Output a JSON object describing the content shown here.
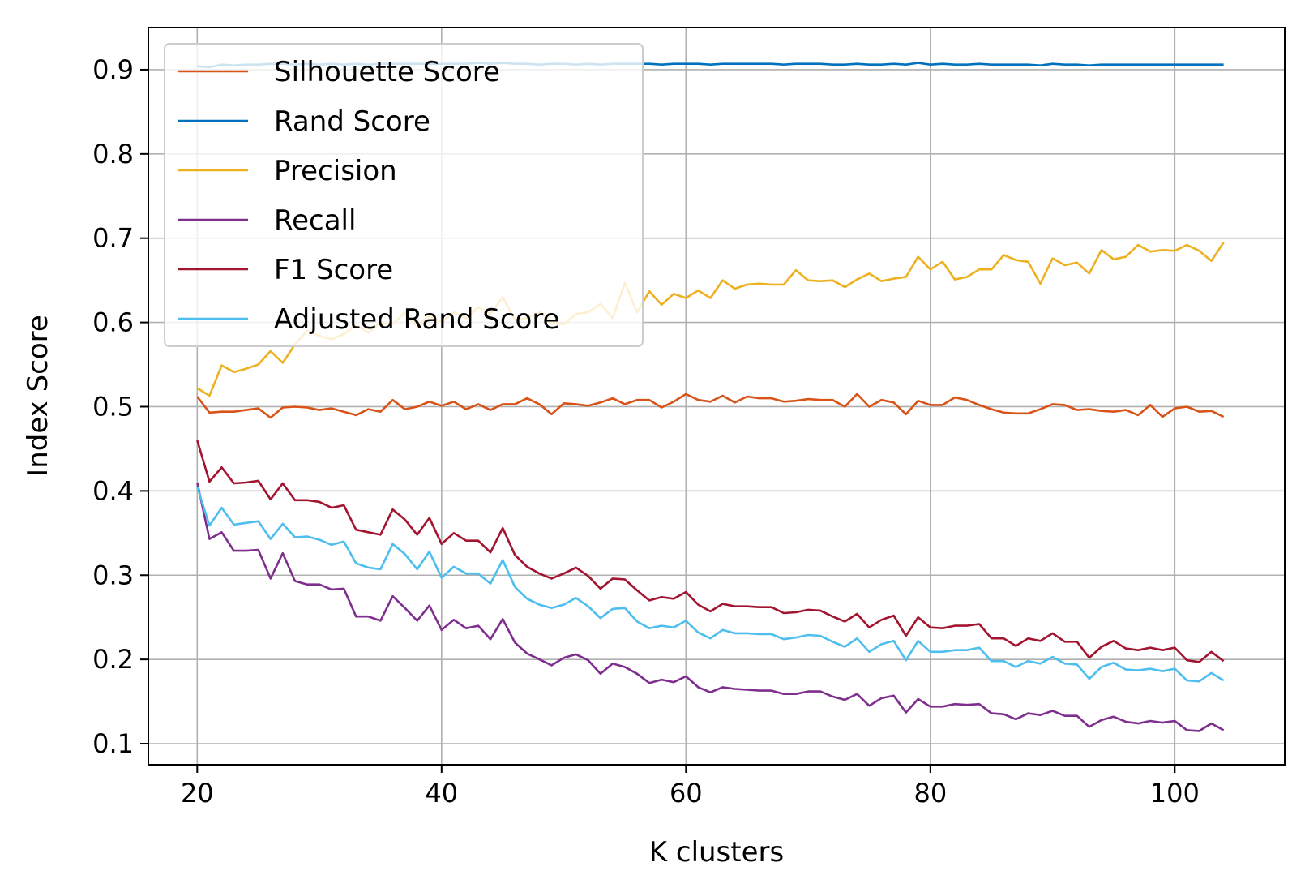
{
  "chart_data": {
    "type": "line",
    "title": "",
    "xlabel": "K clusters",
    "ylabel": "Index Score",
    "xlim": [
      16,
      109
    ],
    "ylim": [
      0.075,
      0.95
    ],
    "xticks": [
      20,
      40,
      60,
      80,
      100
    ],
    "yticks": [
      0.1,
      0.2,
      0.3,
      0.4,
      0.5,
      0.6,
      0.7,
      0.8,
      0.9
    ],
    "xtick_labels": [
      "20",
      "40",
      "60",
      "80",
      "100"
    ],
    "ytick_labels": [
      "0.1",
      "0.2",
      "0.3",
      "0.4",
      "0.5",
      "0.6",
      "0.7",
      "0.8",
      "0.9"
    ],
    "grid": true,
    "legend_position": "top-left",
    "x": [
      20,
      21,
      22,
      23,
      24,
      25,
      26,
      27,
      28,
      29,
      30,
      31,
      32,
      33,
      34,
      35,
      36,
      37,
      38,
      39,
      40,
      41,
      42,
      43,
      44,
      45,
      46,
      47,
      48,
      49,
      50,
      51,
      52,
      53,
      54,
      55,
      56,
      57,
      58,
      59,
      60,
      61,
      62,
      63,
      64,
      65,
      66,
      67,
      68,
      69,
      70,
      71,
      72,
      73,
      74,
      75,
      76,
      77,
      78,
      79,
      80,
      81,
      82,
      83,
      84,
      85,
      86,
      87,
      88,
      89,
      90,
      91,
      92,
      93,
      94,
      95,
      96,
      97,
      98,
      99,
      100,
      101,
      102,
      103,
      104
    ],
    "series": [
      {
        "name": "Silhouette Score",
        "color": "#d95319",
        "values": [
          0.512,
          0.493,
          0.494,
          0.494,
          0.496,
          0.498,
          0.487,
          0.499,
          0.5,
          0.499,
          0.496,
          0.498,
          0.494,
          0.49,
          0.497,
          0.494,
          0.508,
          0.497,
          0.5,
          0.506,
          0.501,
          0.506,
          0.497,
          0.503,
          0.496,
          0.503,
          0.503,
          0.51,
          0.503,
          0.491,
          0.504,
          0.503,
          0.501,
          0.505,
          0.51,
          0.503,
          0.508,
          0.508,
          0.499,
          0.506,
          0.515,
          0.508,
          0.506,
          0.513,
          0.505,
          0.512,
          0.51,
          0.51,
          0.506,
          0.507,
          0.509,
          0.508,
          0.508,
          0.5,
          0.515,
          0.5,
          0.508,
          0.505,
          0.491,
          0.507,
          0.502,
          0.502,
          0.511,
          0.508,
          0.502,
          0.497,
          0.493,
          0.492,
          0.492,
          0.497,
          0.503,
          0.502,
          0.496,
          0.497,
          0.495,
          0.494,
          0.496,
          0.49,
          0.502,
          0.488,
          0.498,
          0.5,
          0.494,
          0.495,
          0.488
        ]
      },
      {
        "name": "Rand Score",
        "color": "#0072bd",
        "values": [
          0.904,
          0.903,
          0.906,
          0.905,
          0.906,
          0.906,
          0.907,
          0.907,
          0.906,
          0.907,
          0.906,
          0.907,
          0.906,
          0.907,
          0.906,
          0.907,
          0.907,
          0.907,
          0.907,
          0.907,
          0.907,
          0.907,
          0.907,
          0.908,
          0.907,
          0.908,
          0.907,
          0.907,
          0.906,
          0.907,
          0.907,
          0.906,
          0.907,
          0.906,
          0.907,
          0.907,
          0.907,
          0.907,
          0.906,
          0.907,
          0.907,
          0.907,
          0.906,
          0.907,
          0.907,
          0.907,
          0.907,
          0.907,
          0.906,
          0.907,
          0.907,
          0.907,
          0.906,
          0.906,
          0.907,
          0.906,
          0.906,
          0.907,
          0.906,
          0.908,
          0.906,
          0.907,
          0.906,
          0.906,
          0.907,
          0.906,
          0.906,
          0.906,
          0.906,
          0.905,
          0.907,
          0.906,
          0.906,
          0.905,
          0.906,
          0.906,
          0.906,
          0.906,
          0.906,
          0.906,
          0.906,
          0.906,
          0.906,
          0.906,
          0.906
        ]
      },
      {
        "name": "Precision",
        "color": "#edb120",
        "values": [
          0.522,
          0.513,
          0.549,
          0.541,
          0.545,
          0.55,
          0.566,
          0.552,
          0.574,
          0.59,
          0.584,
          0.58,
          0.586,
          0.597,
          0.588,
          0.6,
          0.598,
          0.612,
          0.595,
          0.608,
          0.6,
          0.612,
          0.605,
          0.618,
          0.61,
          0.63,
          0.603,
          0.605,
          0.612,
          0.6,
          0.598,
          0.61,
          0.612,
          0.622,
          0.605,
          0.647,
          0.612,
          0.637,
          0.621,
          0.634,
          0.629,
          0.638,
          0.629,
          0.65,
          0.64,
          0.645,
          0.646,
          0.645,
          0.645,
          0.662,
          0.65,
          0.649,
          0.65,
          0.642,
          0.651,
          0.658,
          0.649,
          0.652,
          0.654,
          0.678,
          0.663,
          0.672,
          0.651,
          0.654,
          0.663,
          0.663,
          0.68,
          0.674,
          0.672,
          0.646,
          0.676,
          0.668,
          0.671,
          0.658,
          0.686,
          0.675,
          0.678,
          0.692,
          0.684,
          0.686,
          0.685,
          0.692,
          0.685,
          0.673,
          0.695
        ]
      },
      {
        "name": "Recall",
        "color": "#7e2f8e",
        "values": [
          0.41,
          0.343,
          0.351,
          0.329,
          0.329,
          0.33,
          0.296,
          0.326,
          0.293,
          0.289,
          0.289,
          0.283,
          0.284,
          0.251,
          0.251,
          0.246,
          0.275,
          0.261,
          0.246,
          0.264,
          0.235,
          0.247,
          0.237,
          0.24,
          0.224,
          0.248,
          0.22,
          0.207,
          0.2,
          0.193,
          0.202,
          0.206,
          0.199,
          0.183,
          0.195,
          0.191,
          0.183,
          0.172,
          0.176,
          0.173,
          0.18,
          0.167,
          0.161,
          0.167,
          0.165,
          0.164,
          0.163,
          0.163,
          0.159,
          0.159,
          0.162,
          0.162,
          0.156,
          0.152,
          0.159,
          0.145,
          0.154,
          0.157,
          0.137,
          0.153,
          0.144,
          0.144,
          0.147,
          0.146,
          0.147,
          0.136,
          0.135,
          0.129,
          0.136,
          0.134,
          0.139,
          0.133,
          0.133,
          0.12,
          0.128,
          0.132,
          0.126,
          0.124,
          0.127,
          0.125,
          0.127,
          0.116,
          0.115,
          0.124,
          0.116
        ]
      },
      {
        "name": "F1 Score",
        "color": "#a2142f",
        "values": [
          0.46,
          0.411,
          0.428,
          0.409,
          0.41,
          0.412,
          0.39,
          0.409,
          0.389,
          0.389,
          0.387,
          0.38,
          0.383,
          0.354,
          0.351,
          0.348,
          0.378,
          0.366,
          0.348,
          0.368,
          0.337,
          0.35,
          0.341,
          0.341,
          0.327,
          0.356,
          0.324,
          0.31,
          0.302,
          0.296,
          0.302,
          0.309,
          0.299,
          0.284,
          0.296,
          0.295,
          0.282,
          0.27,
          0.274,
          0.272,
          0.28,
          0.265,
          0.257,
          0.266,
          0.263,
          0.263,
          0.262,
          0.262,
          0.255,
          0.256,
          0.259,
          0.258,
          0.251,
          0.245,
          0.254,
          0.238,
          0.247,
          0.252,
          0.228,
          0.25,
          0.238,
          0.237,
          0.24,
          0.24,
          0.242,
          0.225,
          0.225,
          0.216,
          0.225,
          0.222,
          0.231,
          0.221,
          0.221,
          0.202,
          0.215,
          0.222,
          0.213,
          0.211,
          0.214,
          0.211,
          0.214,
          0.199,
          0.197,
          0.209,
          0.198
        ]
      },
      {
        "name": "Adjusted Rand Score",
        "color": "#4dbeee",
        "values": [
          0.405,
          0.359,
          0.38,
          0.36,
          0.362,
          0.364,
          0.343,
          0.361,
          0.345,
          0.346,
          0.342,
          0.336,
          0.34,
          0.314,
          0.309,
          0.307,
          0.337,
          0.325,
          0.307,
          0.328,
          0.297,
          0.31,
          0.302,
          0.302,
          0.29,
          0.318,
          0.286,
          0.272,
          0.265,
          0.261,
          0.265,
          0.273,
          0.263,
          0.249,
          0.26,
          0.261,
          0.245,
          0.237,
          0.24,
          0.238,
          0.246,
          0.232,
          0.225,
          0.235,
          0.231,
          0.231,
          0.23,
          0.23,
          0.224,
          0.226,
          0.229,
          0.228,
          0.221,
          0.215,
          0.225,
          0.209,
          0.218,
          0.222,
          0.199,
          0.222,
          0.209,
          0.209,
          0.211,
          0.211,
          0.214,
          0.198,
          0.198,
          0.191,
          0.198,
          0.195,
          0.203,
          0.195,
          0.194,
          0.177,
          0.191,
          0.196,
          0.188,
          0.187,
          0.189,
          0.186,
          0.189,
          0.175,
          0.174,
          0.184,
          0.175
        ]
      }
    ]
  }
}
